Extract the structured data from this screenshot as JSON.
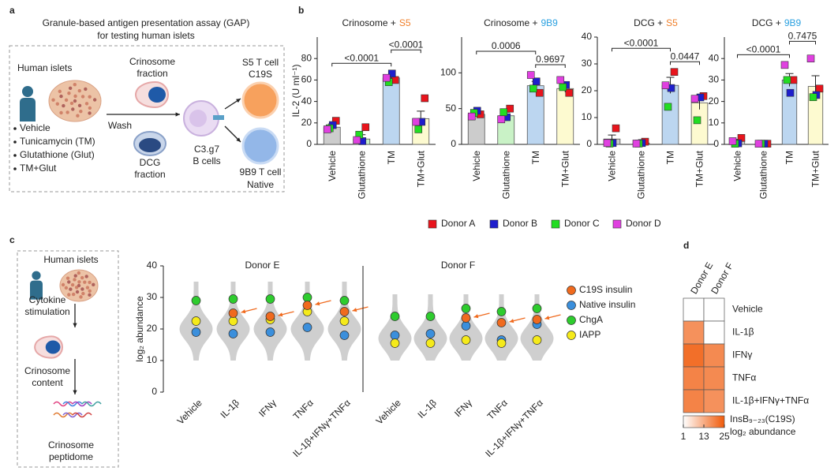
{
  "panel_labels": [
    "a",
    "b",
    "c",
    "d"
  ],
  "diagram_a": {
    "title": [
      "Granule-based antigen presentation assay (GAP)",
      "for testing human islets"
    ],
    "islets": "Human islets",
    "treatments": [
      "Vehicle",
      "Tunicamycin (TM)",
      "Glutathione (Glut)",
      "TM+Glut"
    ],
    "crinosome": [
      "Crinosome",
      "fraction"
    ],
    "dcg": [
      "DCG",
      "fraction"
    ],
    "wash": "Wash",
    "b_cells": [
      "C3.g7",
      "B cells"
    ],
    "t_cell_s5": [
      "S5 T cell",
      "C19S"
    ],
    "t_cell_9b9": [
      "9B9 T cell",
      "Native"
    ]
  },
  "diagram_c": {
    "islets": "Human islets",
    "stimulation": [
      "Cytokine",
      "stimulation"
    ],
    "content": [
      "Crinosome",
      "content"
    ],
    "peptidome": [
      "Crinosome",
      "peptidome"
    ]
  },
  "chart_data": [
    {
      "type": "bar",
      "title": "Crinosome +",
      "title_accent": "S5",
      "title_accent_color": "#f07f2a",
      "ylabel": "IL-2 (U ml⁻¹)",
      "categories": [
        "Vehicle",
        "Glutathione",
        "TM",
        "TM+Glut"
      ],
      "bar_colors": [
        "#cccccc",
        "#c9f2c6",
        "#bcd6f0",
        "#fdfad0"
      ],
      "values": [
        16,
        5,
        62,
        24
      ],
      "errors": [
        3,
        4,
        3,
        7
      ],
      "ylim": [
        0,
        100
      ],
      "yticks": [
        0,
        20,
        40,
        60,
        80
      ],
      "series": [
        {
          "name": "Donor A",
          "color": "#e8141c",
          "values": [
            22,
            16,
            60,
            43
          ]
        },
        {
          "name": "Donor B",
          "color": "#1e1ecc",
          "values": [
            18,
            3,
            66,
            21
          ]
        },
        {
          "name": "Donor C",
          "color": "#22dd22",
          "values": [
            15,
            9,
            58,
            14
          ]
        },
        {
          "name": "Donor D",
          "color": "#e040e0",
          "values": [
            14,
            4,
            62,
            21
          ]
        }
      ],
      "comparisons": [
        {
          "between": [
            "Vehicle",
            "TM"
          ],
          "label": "<0.0001"
        },
        {
          "between": [
            "TM",
            "TM+Glut"
          ],
          "label": "<0.0001"
        }
      ]
    },
    {
      "type": "bar",
      "title": "Crinosome +",
      "title_accent": "9B9",
      "title_accent_color": "#2aa0e0",
      "categories": [
        "Vehicle",
        "Glutathione",
        "TM",
        "TM+Glut"
      ],
      "bar_colors": [
        "#cccccc",
        "#c9f2c6",
        "#bcd6f0",
        "#fdfad0"
      ],
      "values": [
        42,
        40,
        82,
        78
      ],
      "errors": [
        3,
        5,
        6,
        5
      ],
      "ylim": [
        0,
        150
      ],
      "yticks": [
        0,
        50,
        100
      ],
      "series": [
        {
          "values": [
            42,
            50,
            72,
            72
          ]
        },
        {
          "values": [
            47,
            38,
            88,
            83
          ]
        },
        {
          "values": [
            44,
            45,
            78,
            80
          ]
        },
        {
          "values": [
            39,
            35,
            97,
            90
          ]
        }
      ],
      "comparisons": [
        {
          "between": [
            "TM",
            "TM+Glut"
          ],
          "label": "0.9697"
        },
        {
          "between": [
            "Vehicle",
            "TM"
          ],
          "label": "0.0006"
        }
      ]
    },
    {
      "type": "bar",
      "title": "DCG +",
      "title_accent": "S5",
      "title_accent_color": "#f07f2a",
      "categories": [
        "Vehicle",
        "Glutathione",
        "TM",
        "TM+Glut"
      ],
      "bar_colors": [
        "#cccccc",
        "#c9f2c6",
        "#bcd6f0",
        "#fdfad0"
      ],
      "values": [
        2,
        0.5,
        22,
        15.5
      ],
      "errors": [
        1.5,
        0.3,
        3,
        2.5
      ],
      "ylim": [
        0,
        40
      ],
      "yticks": [
        0,
        10,
        20,
        30,
        40
      ],
      "series": [
        {
          "values": [
            6,
            1,
            27,
            18
          ]
        },
        {
          "values": [
            0.5,
            0.5,
            21,
            17.5
          ]
        },
        {
          "values": [
            0.3,
            0.3,
            14,
            9
          ]
        },
        {
          "values": [
            0.5,
            0.3,
            22,
            17
          ]
        }
      ],
      "comparisons": [
        {
          "between": [
            "TM",
            "TM+Glut"
          ],
          "label": "0.0447"
        },
        {
          "between": [
            "Vehicle",
            "TM"
          ],
          "label": "<0.0001"
        }
      ]
    },
    {
      "type": "bar",
      "title": "DCG +",
      "title_accent": "9B9",
      "title_accent_color": "#2aa0e0",
      "categories": [
        "Vehicle",
        "Glutathione",
        "TM",
        "TM+Glut"
      ],
      "bar_colors": [
        "#cccccc",
        "#c9f2c6",
        "#bcd6f0",
        "#fdfad0"
      ],
      "values": [
        1.5,
        0.3,
        30,
        27
      ],
      "errors": [
        0.8,
        0.1,
        3,
        5
      ],
      "ylim": [
        0,
        50
      ],
      "yticks": [
        0,
        10,
        20,
        30,
        40
      ],
      "series": [
        {
          "values": [
            3,
            0.3,
            30,
            26
          ]
        },
        {
          "values": [
            0.5,
            0.3,
            24,
            23
          ]
        },
        {
          "values": [
            0.3,
            0.3,
            30,
            22
          ]
        },
        {
          "values": [
            1.5,
            0.3,
            37,
            40
          ]
        }
      ],
      "comparisons": [
        {
          "between": [
            "Vehicle",
            "TM"
          ],
          "label": "<0.0001"
        },
        {
          "between": [
            "TM",
            "TM+Glut"
          ],
          "label": "0.7475"
        }
      ]
    },
    {
      "type": "swarm",
      "title": "Donor E",
      "ylabel": "log₂ abundance",
      "categories": [
        "Vehicle",
        "IL-1β",
        "IFNγ",
        "TNFα",
        "IL-1β+IFNγ+TNFα"
      ],
      "ylim": [
        0,
        40
      ],
      "yticks": [
        0,
        10,
        20,
        30,
        40
      ],
      "series": [
        {
          "name": "C19S insulin",
          "color": "#f06a1e",
          "values": [
            null,
            25,
            24,
            27.5,
            25.5
          ]
        },
        {
          "name": "Native insulin",
          "color": "#3b8fdc",
          "values": [
            19,
            18.5,
            19,
            20.5,
            18
          ]
        },
        {
          "name": "ChgA",
          "color": "#2ecc2e",
          "values": [
            29,
            29.5,
            29.5,
            30,
            29
          ]
        },
        {
          "name": "IAPP",
          "color": "#f5ea1a",
          "values": [
            22.5,
            22.5,
            23,
            25.5,
            22.5
          ]
        }
      ]
    },
    {
      "type": "swarm",
      "title": "Donor F",
      "categories": [
        "Vehicle",
        "IL-1β",
        "IFNγ",
        "TNFα",
        "IL-1β+IFNγ+TNFα"
      ],
      "ylim": [
        0,
        40
      ],
      "series": [
        {
          "values": [
            null,
            null,
            23.5,
            22,
            23
          ]
        },
        {
          "values": [
            18,
            18.5,
            21,
            16.5,
            21.5
          ]
        },
        {
          "values": [
            24,
            24,
            26.5,
            25.5,
            26.5
          ]
        },
        {
          "values": [
            15.5,
            15.5,
            16.5,
            15.5,
            16.5
          ]
        }
      ]
    },
    {
      "type": "heatmap",
      "columns": [
        "Donor E",
        "Donor F"
      ],
      "rows": [
        "Vehicle",
        "IL-1β",
        "IFNγ",
        "TNFα",
        "IL-1β+IFNγ+TNFα"
      ],
      "values": [
        [
          1,
          1
        ],
        [
          17,
          1
        ],
        [
          22,
          18
        ],
        [
          19,
          18
        ],
        [
          19,
          17
        ]
      ],
      "clim": [
        1,
        25
      ],
      "cticks": [
        1,
        13,
        25
      ],
      "colors": [
        "#ffffff",
        "#f05a0a"
      ],
      "colorbar_label": [
        "InsB₉₋₂₃(C19S)",
        "log₂ abundance"
      ]
    }
  ]
}
